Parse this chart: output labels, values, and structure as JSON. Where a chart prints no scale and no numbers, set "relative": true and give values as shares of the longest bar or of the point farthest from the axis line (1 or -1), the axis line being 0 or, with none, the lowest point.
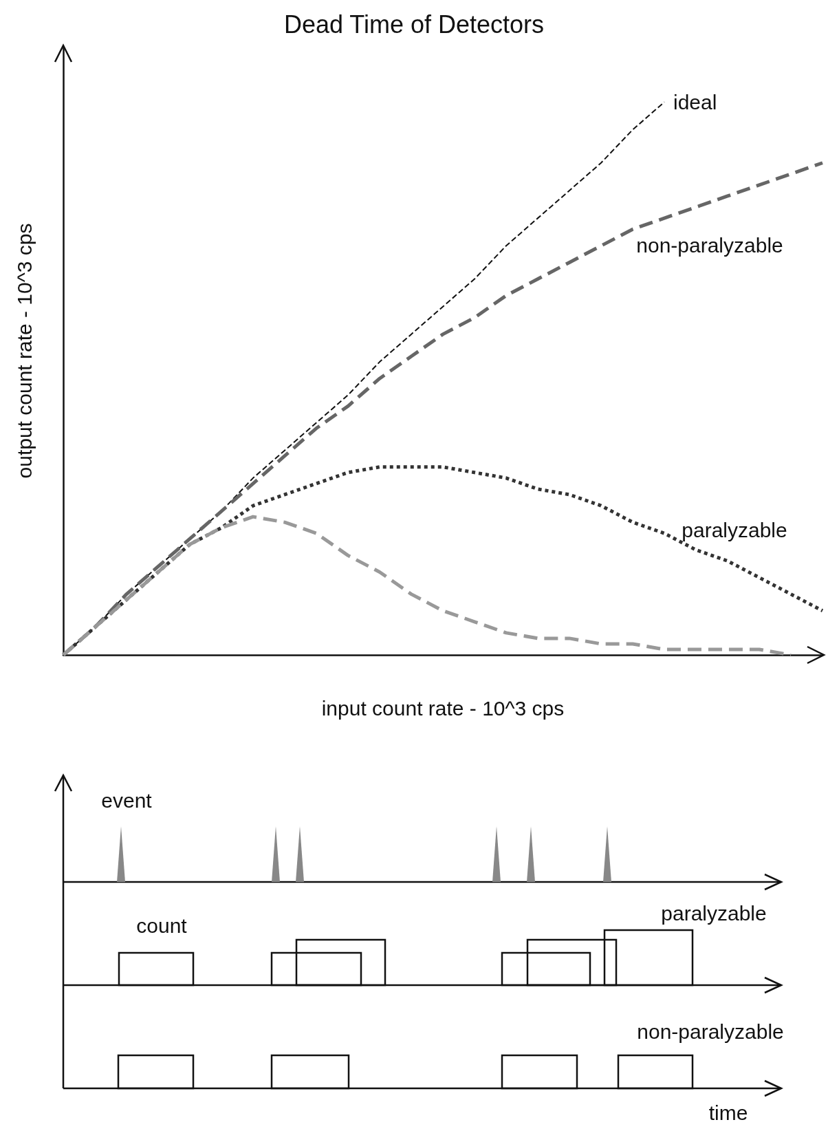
{
  "chart_data": [
    {
      "type": "line",
      "title": "Dead Time of Detectors",
      "xlabel": "input count rate - 10^3 cps",
      "ylabel": "output count rate - 10^3 cps",
      "relative": true,
      "marker": "none",
      "legend": false,
      "grid": false,
      "categories": [
        null,
        null,
        null,
        null,
        null,
        null,
        null,
        null,
        null,
        null,
        null,
        null,
        null,
        null,
        null,
        null,
        null,
        null,
        null,
        null,
        null,
        null,
        null,
        null,
        null
      ],
      "series": [
        {
          "name": "ideal",
          "color": "#111111",
          "line_style": "dashed",
          "values": [
            0,
            0.05,
            0.11,
            0.16,
            0.21,
            0.26,
            0.32,
            0.37,
            0.42,
            0.47,
            0.53,
            0.58,
            0.63,
            0.68,
            0.74,
            0.79,
            0.84,
            0.89,
            0.95,
            1,
            null,
            null,
            null,
            null,
            null
          ]
        },
        {
          "name": "non-paralyzable",
          "color": "#666666",
          "line_style": "dashed",
          "values": [
            0,
            0.05,
            0.11,
            0.16,
            0.21,
            0.26,
            0.31,
            0.36,
            0.41,
            0.45,
            0.5,
            0.54,
            0.58,
            0.61,
            0.65,
            0.68,
            0.71,
            0.74,
            0.77,
            0.79,
            0.81,
            0.83,
            0.85,
            0.87,
            0.89
          ]
        },
        {
          "name": "paralyzable",
          "color": "#333333",
          "line_style": "dotted",
          "values": [
            0,
            0.05,
            0.1,
            0.15,
            0.2,
            0.23,
            0.27,
            0.29,
            0.31,
            0.33,
            0.34,
            0.34,
            0.34,
            0.33,
            0.32,
            0.3,
            0.29,
            0.27,
            0.24,
            0.22,
            0.19,
            0.17,
            0.14,
            0.11,
            0.08
          ]
        },
        {
          "color": "#999999",
          "line_style": "dashed",
          "values": [
            0,
            0.05,
            0.1,
            0.15,
            0.2,
            0.23,
            0.25,
            0.24,
            0.22,
            0.18,
            0.15,
            0.11,
            0.08,
            0.06,
            0.04,
            0.03,
            0.03,
            0.02,
            0.02,
            0.01,
            0.01,
            0.01,
            0.01,
            0,
            null
          ]
        }
      ]
    },
    {
      "type": "other",
      "annotations": [
        "event",
        "count",
        "paralyzable",
        "non-paralyzable",
        "time"
      ]
    }
  ]
}
